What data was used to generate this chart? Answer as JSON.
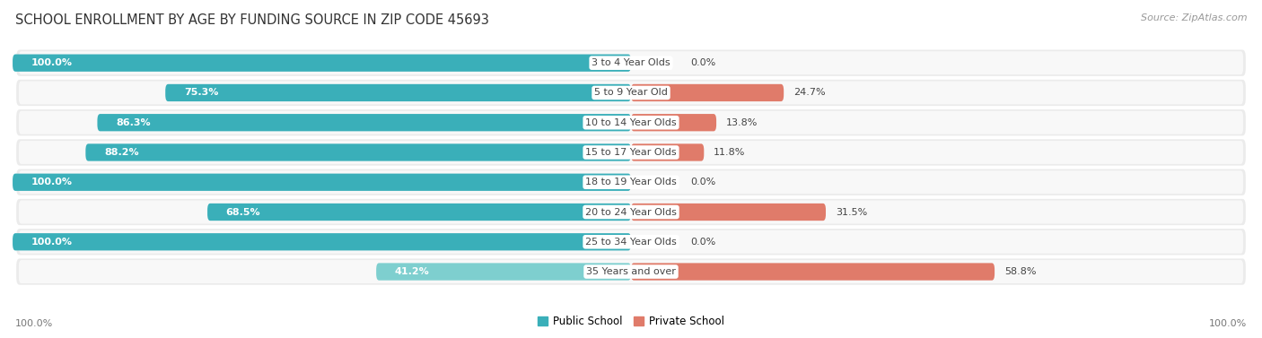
{
  "title": "SCHOOL ENROLLMENT BY AGE BY FUNDING SOURCE IN ZIP CODE 45693",
  "source": "Source: ZipAtlas.com",
  "categories": [
    "3 to 4 Year Olds",
    "5 to 9 Year Old",
    "10 to 14 Year Olds",
    "15 to 17 Year Olds",
    "18 to 19 Year Olds",
    "20 to 24 Year Olds",
    "25 to 34 Year Olds",
    "35 Years and over"
  ],
  "public_pct": [
    100.0,
    75.3,
    86.3,
    88.2,
    100.0,
    68.5,
    100.0,
    41.2
  ],
  "private_pct": [
    0.0,
    24.7,
    13.8,
    11.8,
    0.0,
    31.5,
    0.0,
    58.8
  ],
  "public_colors": [
    "#3AAFB9",
    "#3AAFB9",
    "#3AAFB9",
    "#3AAFB9",
    "#3AAFB9",
    "#3AAFB9",
    "#3AAFB9",
    "#7ECFCF"
  ],
  "private_color": "#E07B6A",
  "private_color_light": "#F0A898",
  "private_colors": [
    "#F0A898",
    "#E07B6A",
    "#E07B6A",
    "#E07B6A",
    "#F0A898",
    "#E07B6A",
    "#F0A898",
    "#E07B6A"
  ],
  "bg_row_color": "#EBEBEB",
  "bg_row_color2": "#F5F5F5",
  "axis_label_left": "100.0%",
  "axis_label_right": "100.0%",
  "title_fontsize": 10.5,
  "source_fontsize": 8,
  "bar_label_fontsize": 8,
  "cat_label_fontsize": 8,
  "legend_public": "Public School",
  "legend_private": "Private School"
}
